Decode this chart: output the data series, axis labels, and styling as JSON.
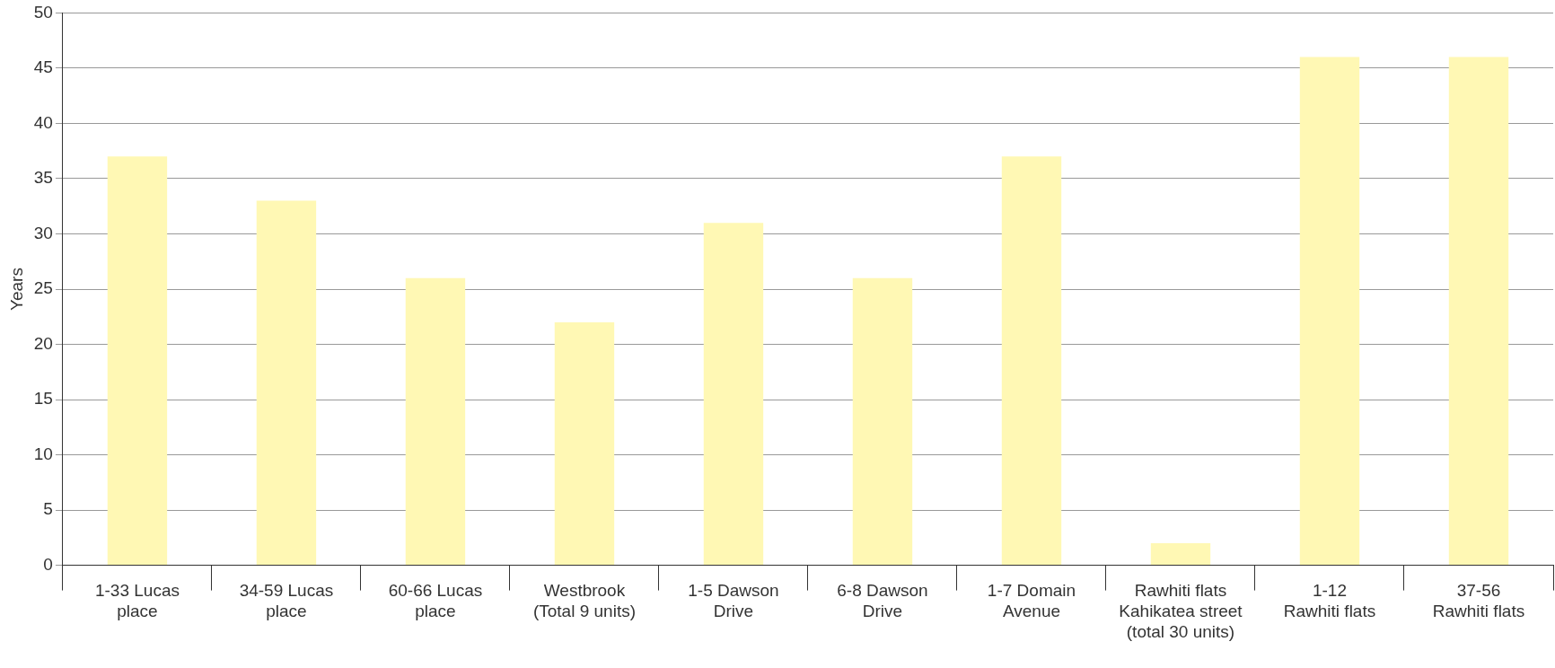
{
  "chart_data": {
    "type": "bar",
    "ylabel": "Years",
    "categories": [
      "1-33 Lucas\nplace",
      "34-59 Lucas\nplace",
      "60-66 Lucas\nplace",
      "Westbrook\n(Total 9 units)",
      "1-5 Dawson\nDrive",
      "6-8 Dawson\nDrive",
      "1-7 Domain\nAvenue",
      "Rawhiti flats\nKahikatea street\n(total 30 units)",
      "1-12\nRawhiti flats",
      "37-56\nRawhiti flats"
    ],
    "values": [
      37,
      33,
      26,
      22,
      31,
      26,
      37,
      2,
      46,
      46
    ],
    "color": "#fff8b4",
    "ylim": [
      0,
      50
    ],
    "yticks": [
      0,
      5,
      10,
      15,
      20,
      25,
      30,
      35,
      40,
      45,
      50
    ],
    "grid": "y",
    "legend": false
  }
}
